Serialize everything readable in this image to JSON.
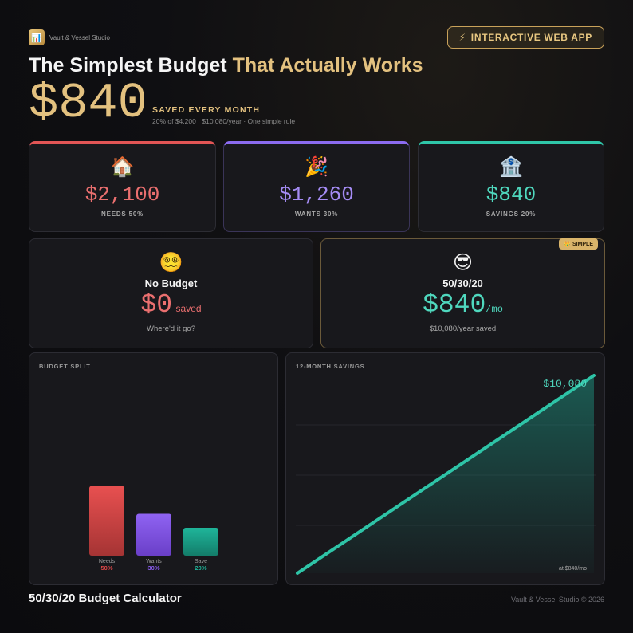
{
  "brand": {
    "name": "Vault & Vessel Studio",
    "logo_icon": "chart-icon"
  },
  "header": {
    "pill_icon": "lightning-icon",
    "pill_label": "INTERACTIVE WEB APP",
    "title_main": "The Simplest Budget ",
    "title_accent": "That Actually Works"
  },
  "hero": {
    "amount": "$840",
    "label": "SAVED EVERY MONTH",
    "sub": "20% of $4,200 · $10,080/year · One simple rule"
  },
  "split_cards": [
    {
      "icon": "🏠",
      "icon_name": "house-icon",
      "amount": "$2,100",
      "caption": "NEEDS 50%",
      "color": "#ea6f6f"
    },
    {
      "icon": "🎉",
      "icon_name": "party-popper-icon",
      "amount": "$1,260",
      "caption": "WANTS 30%",
      "color": "#a58cf5"
    },
    {
      "icon": "🏦",
      "icon_name": "bank-icon",
      "amount": "$840",
      "caption": "SAVINGS 20%",
      "color": "#4fd8be"
    }
  ],
  "comparison": {
    "left": {
      "icon": "😵‍💫",
      "icon_name": "dizzy-face-icon",
      "title": "No Budget",
      "amount": "$0",
      "suffix": "saved",
      "note": "Where'd it go?"
    },
    "right": {
      "icon": "😎",
      "icon_name": "sunglasses-face-icon",
      "title": "50/30/20",
      "amount": "$840",
      "suffix": "/mo",
      "note": "$10,080/year saved",
      "badge_icon": "👑",
      "badge": "SIMPLE"
    }
  },
  "budget_split": {
    "label": "BUDGET SPLIT",
    "chart_data": {
      "type": "bar",
      "categories": [
        "Needs",
        "Wants",
        "Save"
      ],
      "values": [
        50,
        30,
        20
      ],
      "value_labels": [
        "50%",
        "30%",
        "20%"
      ],
      "colors": [
        "#e04848",
        "#8a5cf0",
        "#1fb59a"
      ]
    }
  },
  "savings_chart": {
    "label": "12-MONTH SAVINGS",
    "end_label": "$10,080",
    "note": "at $840/mo",
    "chart_data": {
      "type": "area",
      "x": [
        0,
        12
      ],
      "y": [
        0,
        10080
      ],
      "ylim": [
        0,
        10080
      ],
      "color": "#2ec4a7"
    }
  },
  "footer": {
    "title": "50/30/20 Budget Calculator",
    "copyright": "Vault & Vessel Studio © 2026"
  }
}
